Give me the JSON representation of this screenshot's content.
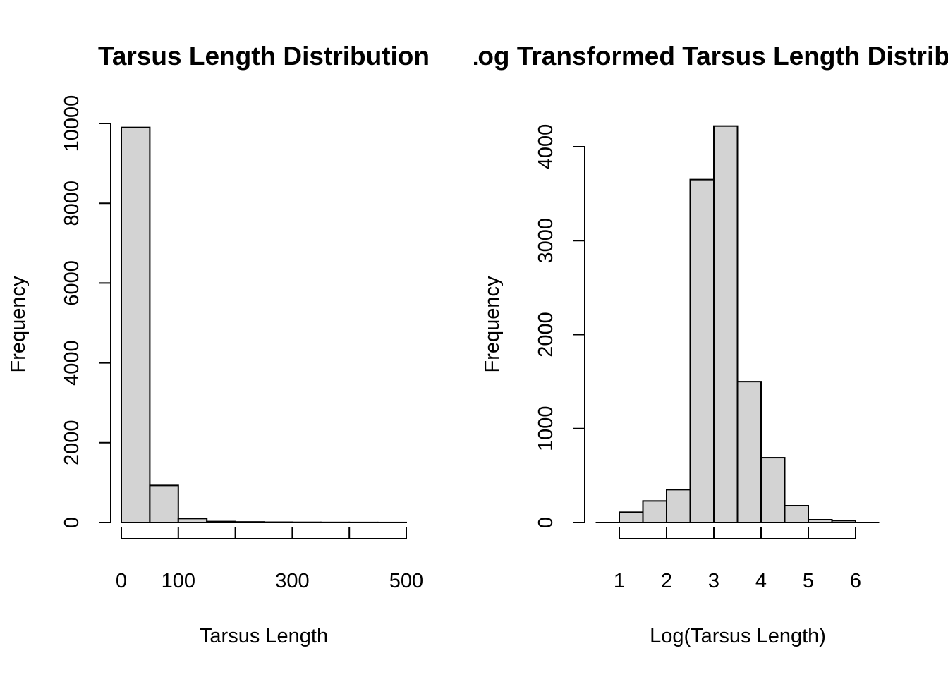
{
  "chart_data": [
    {
      "type": "bar",
      "title": "Tarsus Length Distribution",
      "xlabel": "Tarsus Length",
      "ylabel": "Frequency",
      "bin_edges": [
        0,
        50,
        100,
        150,
        200,
        250,
        300,
        350,
        400,
        450,
        500
      ],
      "values": [
        9900,
        930,
        100,
        25,
        15,
        8,
        5,
        3,
        2,
        1
      ],
      "x_ticks": [
        0,
        100,
        200,
        300,
        400,
        500
      ],
      "x_tick_labels": [
        "0",
        "100",
        "",
        "300",
        "",
        "500"
      ],
      "y_ticks": [
        0,
        2000,
        4000,
        6000,
        8000,
        10000
      ],
      "y_tick_labels": [
        "0",
        "2000",
        "4000",
        "6000",
        "8000",
        "10000"
      ],
      "xlim": [
        0,
        500
      ],
      "ylim": [
        0,
        10000
      ],
      "bar_color": "#d3d3d3",
      "grid": false
    },
    {
      "type": "bar",
      "title": "Log Transformed Tarsus Length Distribution",
      "xlabel": "Log(Tarsus Length)",
      "ylabel": "Frequency",
      "bin_edges": [
        0.5,
        1.0,
        1.5,
        2.0,
        2.5,
        3.0,
        3.5,
        4.0,
        4.5,
        5.0,
        5.5,
        6.0,
        6.5
      ],
      "values": [
        0,
        110,
        230,
        350,
        3650,
        4220,
        1500,
        690,
        180,
        30,
        20,
        0
      ],
      "x_ticks": [
        1,
        2,
        3,
        4,
        5,
        6
      ],
      "x_tick_labels": [
        "1",
        "2",
        "3",
        "4",
        "5",
        "6"
      ],
      "y_ticks": [
        0,
        1000,
        2000,
        3000,
        4000
      ],
      "y_tick_labels": [
        "0",
        "1000",
        "2000",
        "3000",
        "4000"
      ],
      "xlim": [
        0.5,
        6.5
      ],
      "ylim": [
        0,
        4000
      ],
      "bar_color": "#d3d3d3",
      "grid": false
    }
  ]
}
